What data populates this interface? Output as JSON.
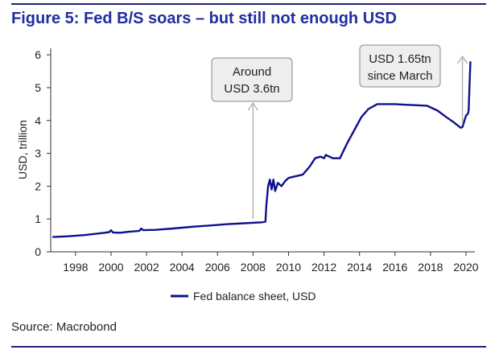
{
  "figure_title": "Figure 5: Fed B/S soars – but still not enough USD",
  "source": "Source: Macrobond",
  "colors": {
    "series": "#10108c",
    "title": "#1f2f9e",
    "rule": "#1f1f7a",
    "arrow": "#aaaaaa",
    "callout_bg": "#eeeeee"
  },
  "chart_data": {
    "type": "line",
    "title": "Figure 5: Fed B/S soars – but still not enough USD",
    "xlabel": "",
    "ylabel": "USD, trillion",
    "xlim": [
      1996.6,
      2020.5
    ],
    "ylim": [
      0,
      6.2
    ],
    "x_ticks": [
      1998,
      2000,
      2002,
      2004,
      2006,
      2008,
      2010,
      2012,
      2014,
      2016,
      2018,
      2020
    ],
    "y_ticks": [
      0,
      1,
      2,
      3,
      4,
      5,
      6
    ],
    "grid": false,
    "legend": "bottom-center",
    "series": [
      {
        "name": "Fed balance sheet, USD",
        "points": [
          [
            1996.7,
            0.45
          ],
          [
            1997.5,
            0.47
          ],
          [
            1998.5,
            0.51
          ],
          [
            1999.5,
            0.57
          ],
          [
            1999.9,
            0.6
          ],
          [
            2000.0,
            0.66
          ],
          [
            2000.1,
            0.59
          ],
          [
            2000.5,
            0.58
          ],
          [
            2001.0,
            0.61
          ],
          [
            2001.6,
            0.64
          ],
          [
            2001.7,
            0.71
          ],
          [
            2001.8,
            0.66
          ],
          [
            2002.5,
            0.67
          ],
          [
            2003.5,
            0.71
          ],
          [
            2004.5,
            0.76
          ],
          [
            2005.5,
            0.8
          ],
          [
            2006.5,
            0.84
          ],
          [
            2007.5,
            0.87
          ],
          [
            2008.5,
            0.9
          ],
          [
            2008.7,
            0.92
          ],
          [
            2008.75,
            1.4
          ],
          [
            2008.85,
            2.0
          ],
          [
            2008.95,
            2.2
          ],
          [
            2009.05,
            1.9
          ],
          [
            2009.15,
            2.2
          ],
          [
            2009.25,
            1.85
          ],
          [
            2009.4,
            2.1
          ],
          [
            2009.6,
            2.0
          ],
          [
            2009.8,
            2.15
          ],
          [
            2010.0,
            2.25
          ],
          [
            2010.4,
            2.3
          ],
          [
            2010.8,
            2.35
          ],
          [
            2011.2,
            2.6
          ],
          [
            2011.5,
            2.85
          ],
          [
            2011.8,
            2.9
          ],
          [
            2012.0,
            2.85
          ],
          [
            2012.1,
            2.95
          ],
          [
            2012.5,
            2.85
          ],
          [
            2012.9,
            2.85
          ],
          [
            2013.3,
            3.3
          ],
          [
            2013.7,
            3.7
          ],
          [
            2014.1,
            4.1
          ],
          [
            2014.5,
            4.35
          ],
          [
            2015.0,
            4.5
          ],
          [
            2016.0,
            4.5
          ],
          [
            2017.0,
            4.47
          ],
          [
            2017.8,
            4.45
          ],
          [
            2018.4,
            4.3
          ],
          [
            2018.9,
            4.1
          ],
          [
            2019.3,
            3.95
          ],
          [
            2019.7,
            3.78
          ],
          [
            2019.8,
            3.8
          ],
          [
            2020.0,
            4.15
          ],
          [
            2020.1,
            4.2
          ],
          [
            2020.15,
            4.3
          ],
          [
            2020.2,
            5.1
          ],
          [
            2020.25,
            5.8
          ]
        ]
      }
    ],
    "annotations": [
      {
        "lines": [
          "Around",
          "USD 3.6tn"
        ],
        "arrow_x": 2008.0,
        "arrow_y_from": 0.9
      },
      {
        "lines": [
          "USD 1.65tn",
          "since March"
        ],
        "arrow_x": 2019.8,
        "arrow_y_from": 3.78
      }
    ]
  }
}
